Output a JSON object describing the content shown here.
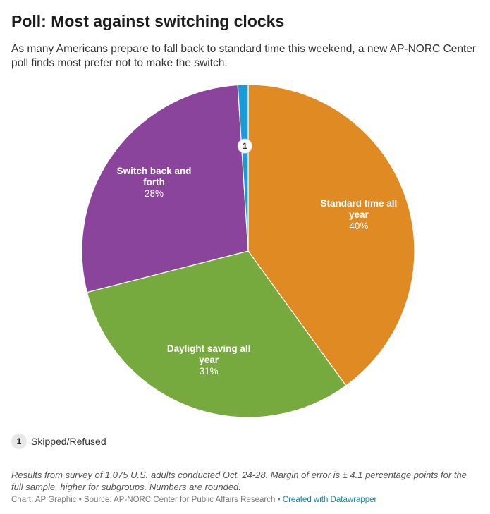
{
  "header": {
    "title": "Poll: Most against switching clocks",
    "subtitle": "As many Americans prepare to fall back to standard time this weekend, a new AP-NORC Center poll finds most prefer not to make the switch."
  },
  "chart_data": {
    "type": "pie",
    "title": "Poll: Most against switching clocks",
    "slices": [
      {
        "label_lines": [
          "Standard time all",
          "year"
        ],
        "value": 40,
        "value_text": "40%",
        "color": "#e08a24"
      },
      {
        "label_lines": [
          "Daylight saving all",
          "year"
        ],
        "value": 31,
        "value_text": "31%",
        "color": "#76aa3e"
      },
      {
        "label_lines": [
          "Switch back and",
          "forth"
        ],
        "value": 28,
        "value_text": "28%",
        "color": "#8b449c"
      },
      {
        "label_lines": [],
        "value": 1,
        "value_text": "",
        "color": "#1a9ad6",
        "marker": "1"
      }
    ]
  },
  "legend": {
    "marker": "1",
    "label": "Skipped/Refused"
  },
  "notes": "Results from survey of 1,075 U.S. adults conducted Oct. 24-28. Margin of error is ± 4.1 percentage points for the full sample, higher for subgroups. Numbers are rounded.",
  "footer": {
    "chart_credit": "Chart: AP Graphic",
    "separator": "•",
    "source": "Source: AP-NORC Center for Public Affairs Research",
    "dw_link": "Created with Datawrapper"
  }
}
